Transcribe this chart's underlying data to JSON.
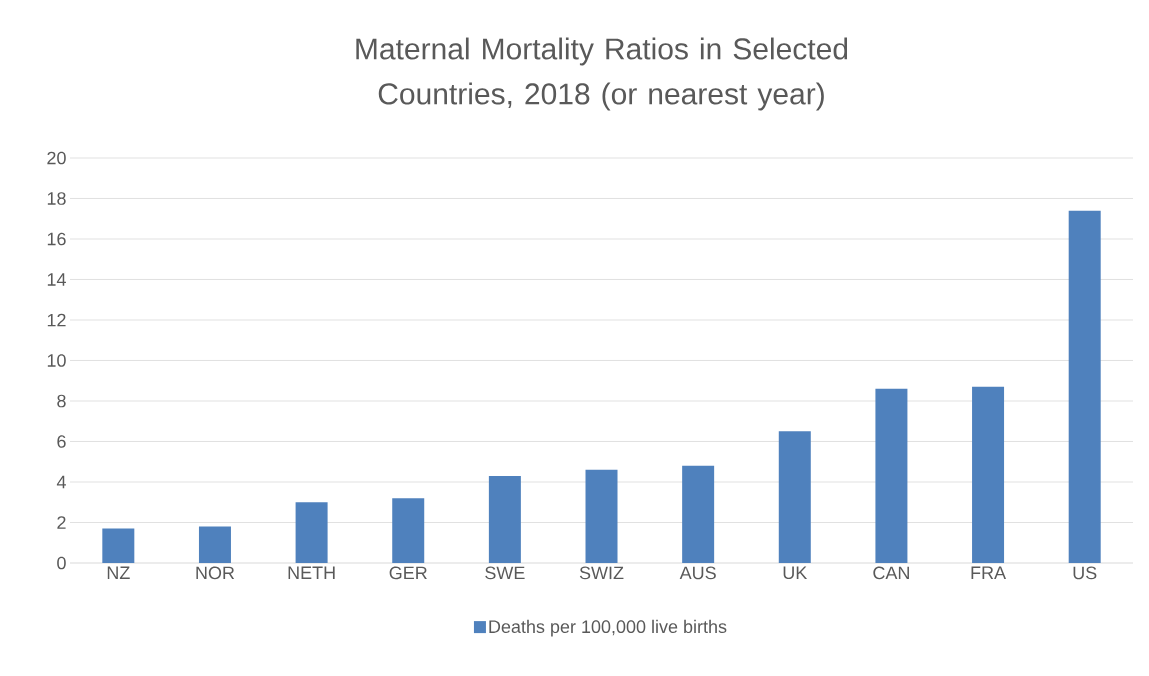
{
  "chart_data": {
    "type": "bar",
    "title": "Maternal Mortality Ratios in Selected Countries, 2018 (or nearest year)",
    "categories": [
      "NZ",
      "NOR",
      "NETH",
      "GER",
      "SWE",
      "SWIZ",
      "AUS",
      "UK",
      "CAN",
      "FRA",
      "US"
    ],
    "series": [
      {
        "name": "Deaths per 100,000 live births",
        "color": "#4f81bd",
        "values": [
          1.7,
          1.8,
          3.0,
          3.2,
          4.3,
          4.6,
          4.8,
          6.5,
          8.6,
          8.7,
          17.4
        ]
      }
    ],
    "ylim": [
      0,
      20
    ],
    "yticks": [
      0,
      2,
      4,
      6,
      8,
      10,
      12,
      14,
      16,
      18,
      20
    ],
    "grid": "y",
    "legend": "bottom"
  }
}
